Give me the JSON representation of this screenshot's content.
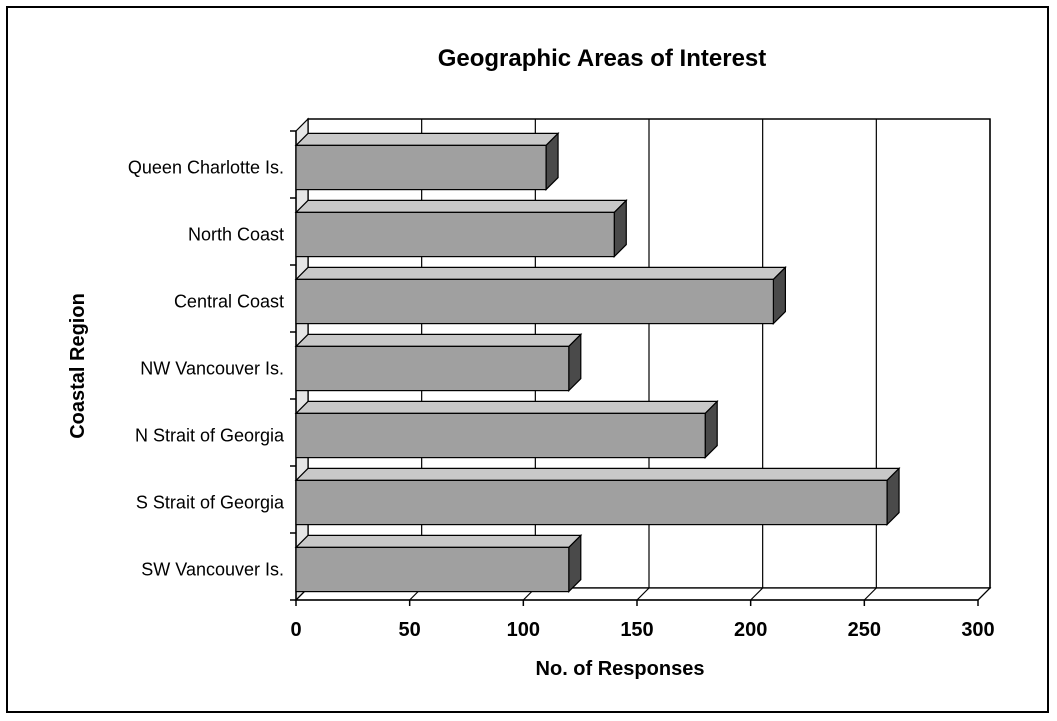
{
  "chart_data": {
    "type": "bar",
    "orientation": "horizontal",
    "style": "3d",
    "title": "Geographic Areas of Interest",
    "xlabel": "No. of Responses",
    "ylabel": "Coastal Region",
    "categories": [
      "Queen Charlotte Is.",
      "North Coast",
      "Central Coast",
      "NW Vancouver Is.",
      "N Strait of Georgia",
      "S Strait of Georgia",
      "SW Vancouver Is."
    ],
    "values": [
      110,
      140,
      210,
      120,
      180,
      260,
      120
    ],
    "xlim": [
      0,
      300
    ],
    "xticks": [
      "0",
      "50",
      "100",
      "150",
      "200",
      "250",
      "300"
    ],
    "grid": true,
    "colors": {
      "bar_front": "#a0a0a0",
      "bar_top": "#c8c8c8",
      "bar_side": "#4a4a4a",
      "wall": "#ffffff",
      "floor": "#e6e6e6"
    }
  }
}
